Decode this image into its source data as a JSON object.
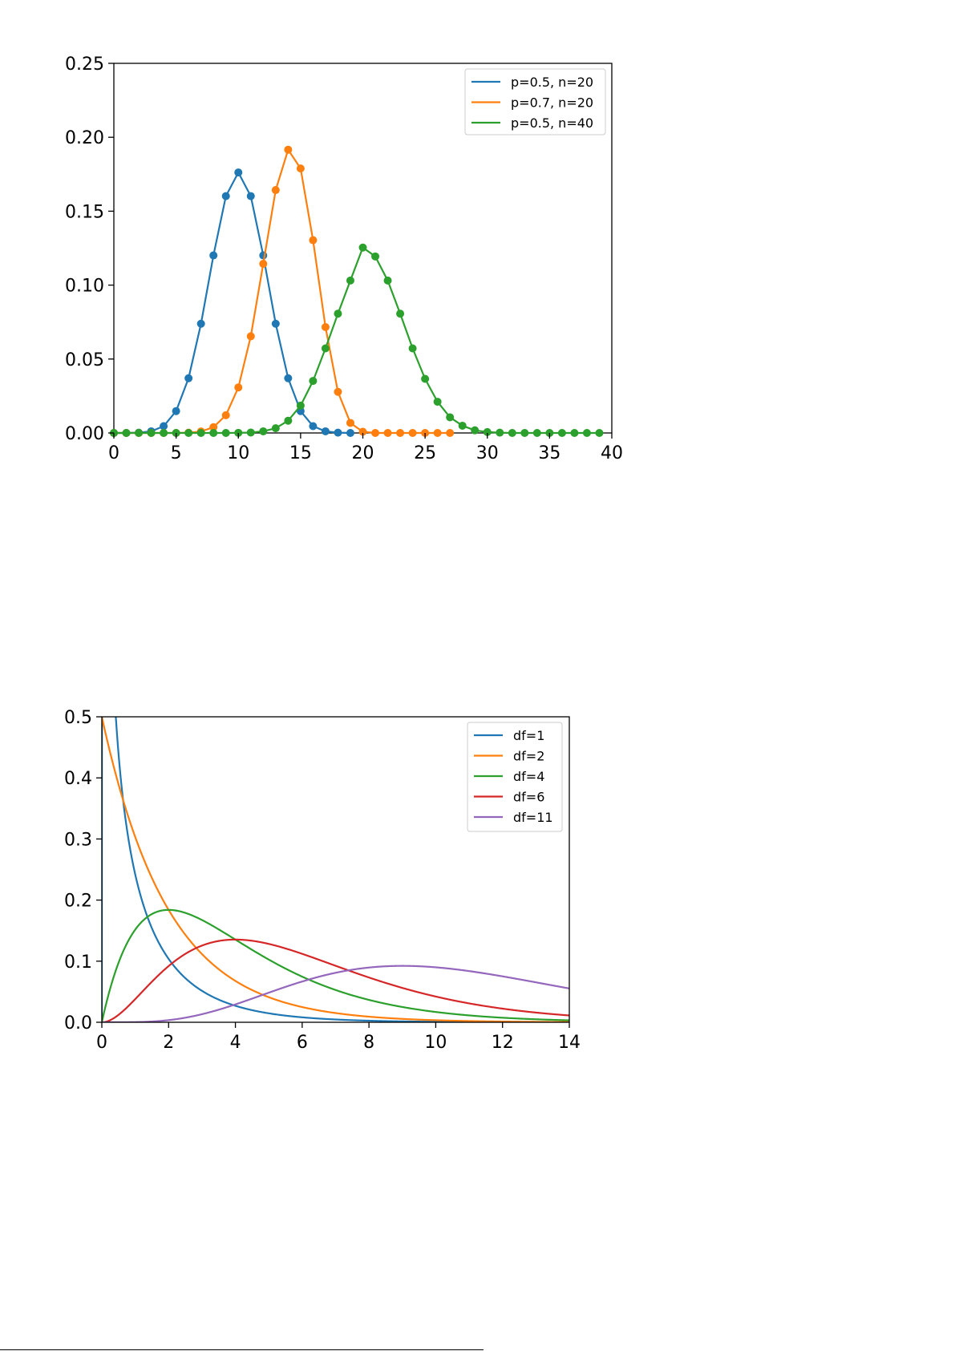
{
  "chart_data": [
    {
      "type": "line",
      "markers": true,
      "title": "",
      "xlabel": "",
      "ylabel": "",
      "xlim": [
        0,
        40
      ],
      "ylim": [
        0,
        0.25
      ],
      "xticks": [
        "0",
        "5",
        "10",
        "15",
        "20",
        "25",
        "30",
        "35",
        "40"
      ],
      "yticks": [
        "0.00",
        "0.05",
        "0.10",
        "0.15",
        "0.20",
        "0.25"
      ],
      "grid": false,
      "legend_position": "top-right",
      "series": [
        {
          "name": "p=0.5, n=20",
          "color": "#1f77b4",
          "x": [
            0,
            1,
            2,
            3,
            4,
            5,
            6,
            7,
            8,
            9,
            10,
            11,
            12,
            13,
            14,
            15,
            16,
            17,
            18,
            19
          ],
          "y": [
            0,
            0,
            0.0002,
            0.0011,
            0.0046,
            0.0148,
            0.037,
            0.0739,
            0.1201,
            0.1602,
            0.1762,
            0.1602,
            0.1201,
            0.0739,
            0.037,
            0.0148,
            0.0046,
            0.0011,
            0.0002,
            0
          ]
        },
        {
          "name": "p=0.7, n=20",
          "color": "#ff7f0e",
          "x": [
            0,
            1,
            2,
            3,
            4,
            5,
            6,
            7,
            8,
            9,
            10,
            11,
            12,
            13,
            14,
            15,
            16,
            17,
            18,
            19,
            20,
            21,
            22,
            23,
            24,
            25,
            26,
            27
          ],
          "y": [
            0,
            0,
            0,
            0,
            0,
            0,
            0.0002,
            0.001,
            0.0039,
            0.012,
            0.0308,
            0.0654,
            0.1144,
            0.1643,
            0.1916,
            0.1789,
            0.1304,
            0.0716,
            0.0278,
            0.0068,
            0.0008,
            0,
            0,
            0,
            0,
            0,
            0,
            0
          ]
        },
        {
          "name": "p=0.5, n=40",
          "color": "#2ca02c",
          "x": [
            0,
            1,
            2,
            3,
            4,
            5,
            6,
            7,
            8,
            9,
            10,
            11,
            12,
            13,
            14,
            15,
            16,
            17,
            18,
            19,
            20,
            21,
            22,
            23,
            24,
            25,
            26,
            27,
            28,
            29,
            30,
            31,
            32,
            33,
            34,
            35,
            36,
            37,
            38,
            39
          ],
          "y": [
            0,
            0,
            0,
            0,
            0,
            0,
            0,
            0,
            0,
            0,
            0.0001,
            0.0003,
            0.0011,
            0.0032,
            0.0083,
            0.0185,
            0.0352,
            0.0572,
            0.0807,
            0.1031,
            0.1254,
            0.1194,
            0.1031,
            0.0807,
            0.0572,
            0.0366,
            0.0211,
            0.0106,
            0.0049,
            0.0018,
            0.0006,
            0.0002,
            0,
            0,
            0,
            0,
            0,
            0,
            0,
            0
          ]
        }
      ]
    },
    {
      "type": "line",
      "markers": false,
      "title": "",
      "xlabel": "",
      "ylabel": "",
      "xlim": [
        0,
        14
      ],
      "ylim": [
        0,
        0.5
      ],
      "xticks": [
        "0",
        "2",
        "4",
        "6",
        "8",
        "10",
        "12",
        "14"
      ],
      "yticks": [
        "0.0",
        "0.1",
        "0.2",
        "0.3",
        "0.4",
        "0.5"
      ],
      "grid": false,
      "legend_position": "top-right",
      "series": [
        {
          "name": "df=1",
          "color": "#1f77b4",
          "df": 1
        },
        {
          "name": "df=2",
          "color": "#ff7f0e",
          "df": 2
        },
        {
          "name": "df=4",
          "color": "#2ca02c",
          "df": 4
        },
        {
          "name": "df=6",
          "color": "#d62728",
          "df": 6
        },
        {
          "name": "df=11",
          "color": "#9467bd",
          "df": 11
        }
      ]
    }
  ]
}
